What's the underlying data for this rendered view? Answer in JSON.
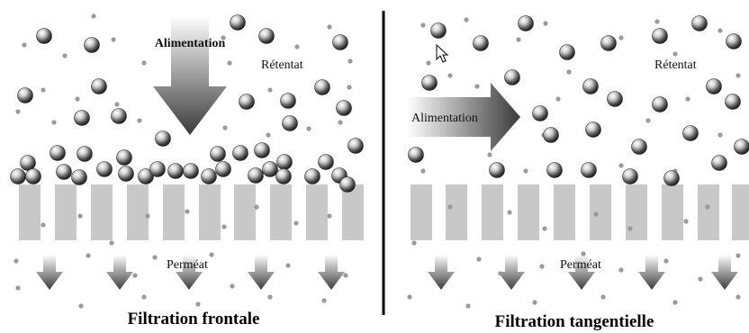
{
  "panels": [
    {
      "id": "frontale",
      "feed_label": "Alimentation",
      "retentate_label": "Rétentat",
      "permeate_label": "Perméat",
      "caption": "Filtration frontale"
    },
    {
      "id": "tangentielle",
      "feed_label": "Alimentation",
      "retentate_label": "Rétentat",
      "permeate_label": "Perméat",
      "caption": "Filtration tangentielle"
    }
  ],
  "colors": {
    "membrane": "#c8c8c8",
    "divider": "#000000",
    "particle_dark": "#2e2e2e",
    "small_particle": "#9a9a9a"
  },
  "icons": [
    "mouse-cursor-icon"
  ]
}
